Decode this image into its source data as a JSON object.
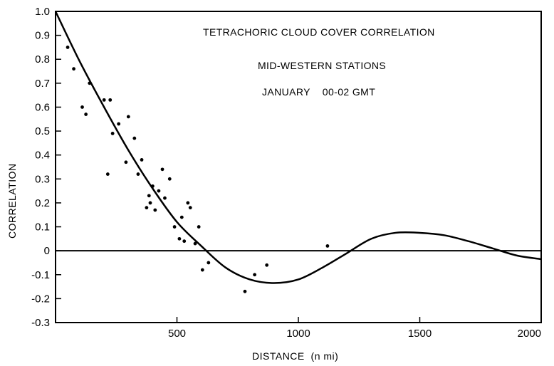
{
  "chart_data": {
    "type": "scatter",
    "annotations": [
      "TETRACHORIC CLOUD COVER CORRELATION",
      "MID-WESTERN STATIONS",
      "JANUARY    00-02 GMT"
    ],
    "xlabel": "DISTANCE  (n mi)",
    "ylabel": "CORRELATION",
    "xlim": [
      0,
      2000
    ],
    "ylim": [
      -0.3,
      1.0
    ],
    "x_ticks": [
      500,
      1000,
      1500,
      2000
    ],
    "x_tick_labels": [
      "500",
      "1000",
      "1500",
      "2000"
    ],
    "y_ticks": [
      1.0,
      0.9,
      0.8,
      0.7,
      0.6,
      0.5,
      0.4,
      0.3,
      0.2,
      0.1,
      0,
      -0.1,
      -0.2,
      -0.3
    ],
    "y_tick_labels": [
      "1.0",
      "0.9",
      "0.8",
      "0.7",
      "0.6",
      "0.5",
      "0.4",
      "0.3",
      "0.2",
      "0.1",
      "0",
      "-0.1",
      "-0.2",
      "-0.3"
    ],
    "grid": false,
    "zero_line": true,
    "scatter": {
      "x": [
        50,
        75,
        110,
        125,
        140,
        200,
        215,
        225,
        235,
        260,
        290,
        300,
        325,
        340,
        355,
        375,
        385,
        390,
        400,
        410,
        425,
        440,
        450,
        470,
        490,
        510,
        520,
        530,
        545,
        555,
        575,
        590,
        605,
        630,
        780,
        820,
        870,
        1120
      ],
      "y": [
        0.85,
        0.76,
        0.6,
        0.57,
        0.7,
        0.63,
        0.32,
        0.63,
        0.49,
        0.53,
        0.37,
        0.56,
        0.47,
        0.32,
        0.38,
        0.18,
        0.23,
        0.2,
        0.27,
        0.17,
        0.25,
        0.34,
        0.22,
        0.3,
        0.1,
        0.05,
        0.14,
        0.04,
        0.2,
        0.18,
        0.03,
        0.1,
        -0.08,
        -0.05,
        -0.17,
        -0.1,
        -0.06,
        0.02
      ]
    },
    "fit_curve": {
      "x": [
        0,
        100,
        200,
        300,
        400,
        500,
        600,
        700,
        800,
        900,
        1000,
        1100,
        1200,
        1300,
        1400,
        1500,
        1600,
        1700,
        1800,
        1900,
        2000
      ],
      "y": [
        1.0,
        0.79,
        0.6,
        0.42,
        0.26,
        0.12,
        0.02,
        -0.07,
        -0.12,
        -0.135,
        -0.12,
        -0.07,
        -0.01,
        0.05,
        0.075,
        0.075,
        0.065,
        0.04,
        0.01,
        -0.02,
        -0.035
      ]
    }
  }
}
